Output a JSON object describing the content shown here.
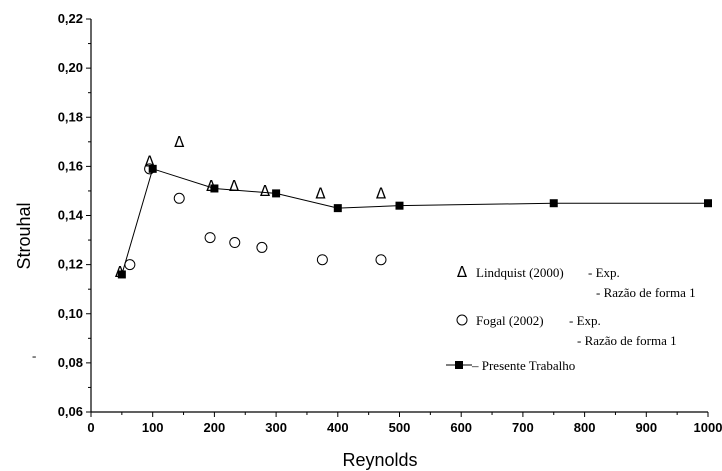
{
  "chart_data": {
    "type": "scatter",
    "xlabel": "Reynolds",
    "ylabel": "Strouhal",
    "xlim": [
      0,
      1000
    ],
    "ylim": [
      0.06,
      0.22
    ],
    "x_ticks": [
      "0",
      "100",
      "200",
      "300",
      "400",
      "500",
      "600",
      "700",
      "800",
      "900",
      "1000"
    ],
    "y_ticks": [
      "0,06",
      "0,08",
      "0,10",
      "0,12",
      "0,14",
      "0,16",
      "0,18",
      "0,20",
      "0,22"
    ],
    "legend_position": "lower-right",
    "series": [
      {
        "name": "Lindquist (2000)",
        "legend_lines": [
          "- Exp.",
          "- Razão de forma 1"
        ],
        "marker": "triangle-open",
        "points": [
          [
            47,
            0.117
          ],
          [
            95,
            0.162
          ],
          [
            143,
            0.17
          ],
          [
            195,
            0.152
          ],
          [
            232,
            0.152
          ],
          [
            282,
            0.15
          ],
          [
            372,
            0.149
          ],
          [
            470,
            0.149
          ]
        ]
      },
      {
        "name": "Fogal (2002)",
        "legend_lines": [
          "- Exp.",
          "- Razão de forma 1"
        ],
        "marker": "circle-open",
        "points": [
          [
            63,
            0.12
          ],
          [
            95,
            0.159
          ],
          [
            143,
            0.147
          ],
          [
            193,
            0.131
          ],
          [
            233,
            0.129
          ],
          [
            277,
            0.127
          ],
          [
            375,
            0.122
          ],
          [
            470,
            0.122
          ]
        ]
      },
      {
        "name": "Presente Trabalho",
        "marker": "square-filled-line",
        "points": [
          [
            50,
            0.116
          ],
          [
            100,
            0.159
          ],
          [
            200,
            0.151
          ],
          [
            300,
            0.149
          ],
          [
            400,
            0.143
          ],
          [
            500,
            0.144
          ],
          [
            750,
            0.145
          ],
          [
            1000,
            0.145
          ]
        ]
      }
    ],
    "stray_marks": [
      "-"
    ]
  }
}
